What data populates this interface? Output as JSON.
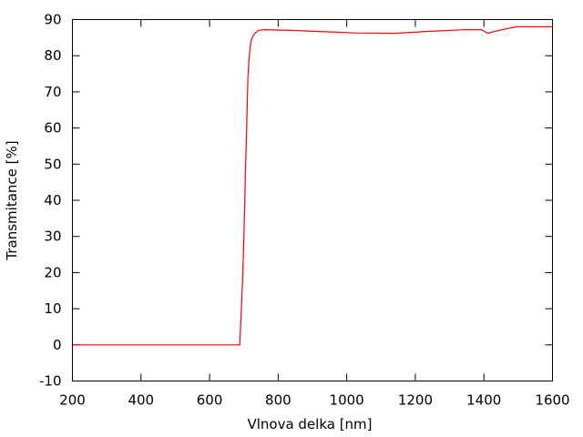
{
  "chart_data": {
    "type": "line",
    "title": "",
    "xlabel": "Vlnova delka [nm]",
    "ylabel": "Transmitance [%]",
    "xlim": [
      200,
      1600
    ],
    "ylim": [
      -10,
      90
    ],
    "xticks": [
      200,
      400,
      600,
      800,
      1000,
      1200,
      1400,
      1600
    ],
    "yticks": [
      -10,
      0,
      10,
      20,
      30,
      40,
      50,
      60,
      70,
      80,
      90
    ],
    "grid": false,
    "legend": "none",
    "series": [
      {
        "color": "#ff0000",
        "x": [
          200,
          688,
          692,
          696,
          700,
          702,
          705,
          708,
          710,
          712,
          715,
          718,
          722,
          730,
          742,
          760,
          800,
          840,
          920,
          1026,
          1138,
          1231,
          1345,
          1393,
          1411,
          1443,
          1496,
          1584,
          1600
        ],
        "y": [
          0,
          0,
          8.4,
          17.2,
          29.3,
          37.9,
          49.4,
          59.5,
          67.6,
          74.4,
          78.9,
          82.2,
          84.5,
          86,
          87,
          87.2,
          87.1,
          87,
          86.7,
          86.3,
          86.2,
          86.7,
          87.2,
          87.2,
          86.2,
          87,
          88,
          88,
          88
        ]
      }
    ]
  }
}
